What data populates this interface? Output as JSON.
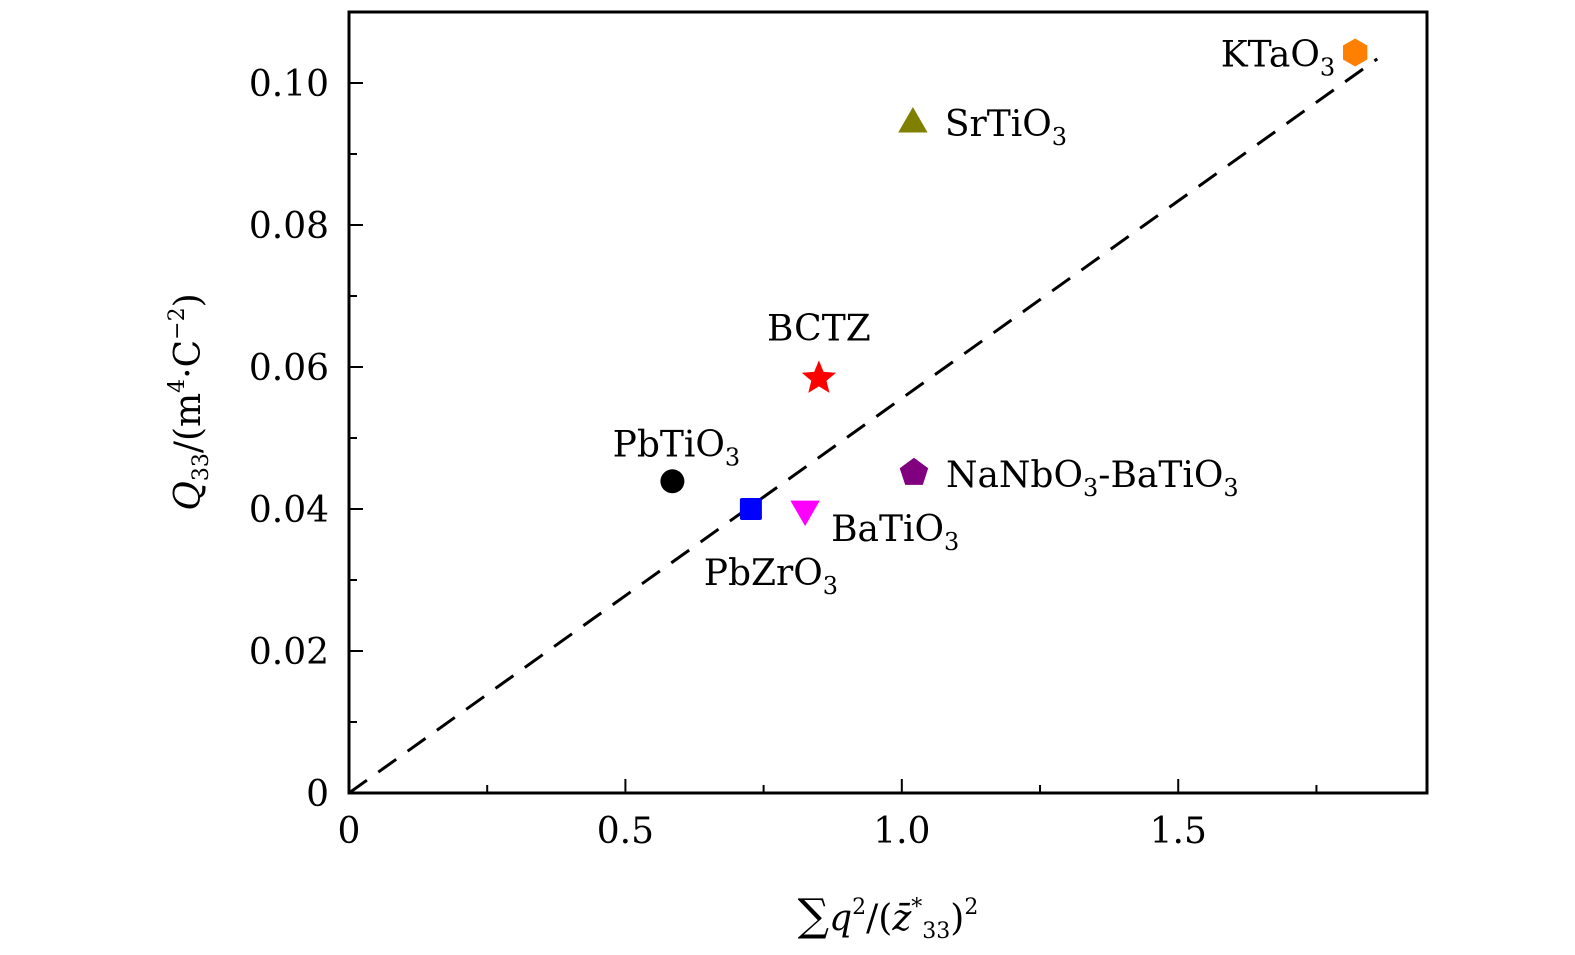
{
  "chart_data": {
    "type": "scatter",
    "title": "",
    "xlabel": "∑q²/(z̄*₃₃)²",
    "xlabel_parts": {
      "sum": "∑",
      "q": "q",
      "q_sup": "2",
      "slash": "/(",
      "z": "z̄",
      "z_sup": "*",
      "z_sub": "33",
      "close": ")",
      "close_sup": "2"
    },
    "ylabel": "Q₃₃/(m⁴·C⁻²)",
    "ylabel_parts": {
      "Q": "Q",
      "Q_sub": "33",
      "mid": "/(m",
      "m_sup": "4",
      "dot": "·C",
      "c_sup": "−2",
      "close": ")"
    },
    "xlim": [
      0,
      1.95
    ],
    "ylim": [
      0,
      0.11
    ],
    "grid": false,
    "legend": "none",
    "x_ticks": [
      {
        "value": 0,
        "label": "0"
      },
      {
        "value": 0.5,
        "label": "0.5"
      },
      {
        "value": 1.0,
        "label": "1.0"
      },
      {
        "value": 1.5,
        "label": "1.5"
      }
    ],
    "x_minor_ticks": [
      0.25,
      0.75,
      1.25,
      1.75
    ],
    "y_ticks": [
      {
        "value": 0,
        "label": "0"
      },
      {
        "value": 0.02,
        "label": "0.02"
      },
      {
        "value": 0.04,
        "label": "0.04"
      },
      {
        "value": 0.06,
        "label": "0.06"
      },
      {
        "value": 0.08,
        "label": "0.08"
      },
      {
        "value": 0.1,
        "label": "0.10"
      }
    ],
    "y_minor_ticks": [
      0.01,
      0.03,
      0.05,
      0.07,
      0.09
    ],
    "points": [
      {
        "name": "KTaO3",
        "label": "KTaO",
        "sub": "3",
        "suffix": "",
        "x": 1.82,
        "y": 0.1043,
        "marker": "hexagon",
        "color": "#ff8000",
        "label_pos": "left"
      },
      {
        "name": "SrTiO3",
        "label": "SrTiO",
        "sub": "3",
        "suffix": "",
        "x": 1.02,
        "y": 0.0945,
        "marker": "triangle-up",
        "color": "#808000",
        "label_pos": "right"
      },
      {
        "name": "BCTZ",
        "label": "BCTZ",
        "sub": "",
        "suffix": "",
        "x": 0.85,
        "y": 0.0584,
        "marker": "star",
        "color": "#ff0000",
        "label_pos": "top"
      },
      {
        "name": "PbTiO3",
        "label": "PbTiO",
        "sub": "3",
        "suffix": "",
        "x": 0.585,
        "y": 0.0439,
        "marker": "circle",
        "color": "#000000",
        "label_pos": "top"
      },
      {
        "name": "PbZrO3",
        "label": "PbZrO",
        "sub": "3",
        "suffix": "",
        "x": 0.727,
        "y": 0.04,
        "marker": "square",
        "color": "#0000ff",
        "label_pos": "bottom"
      },
      {
        "name": "BaTiO3",
        "label": "BaTiO",
        "sub": "3",
        "suffix": "",
        "x": 0.825,
        "y": 0.0397,
        "marker": "triangle-down",
        "color": "#ff00ff",
        "label_pos": "bottom-right"
      },
      {
        "name": "NaNbO3-BaTiO3",
        "label": "NaNbO",
        "sub": "3",
        "suffix": "-BaTiO",
        "suffix_sub": "3",
        "x": 1.022,
        "y": 0.0451,
        "marker": "pentagon",
        "color": "#800080",
        "label_pos": "right"
      }
    ],
    "fit_line": {
      "style": "dashed",
      "color": "#000000",
      "x": [
        0,
        1.86
      ],
      "y": [
        0,
        0.1034
      ]
    }
  }
}
